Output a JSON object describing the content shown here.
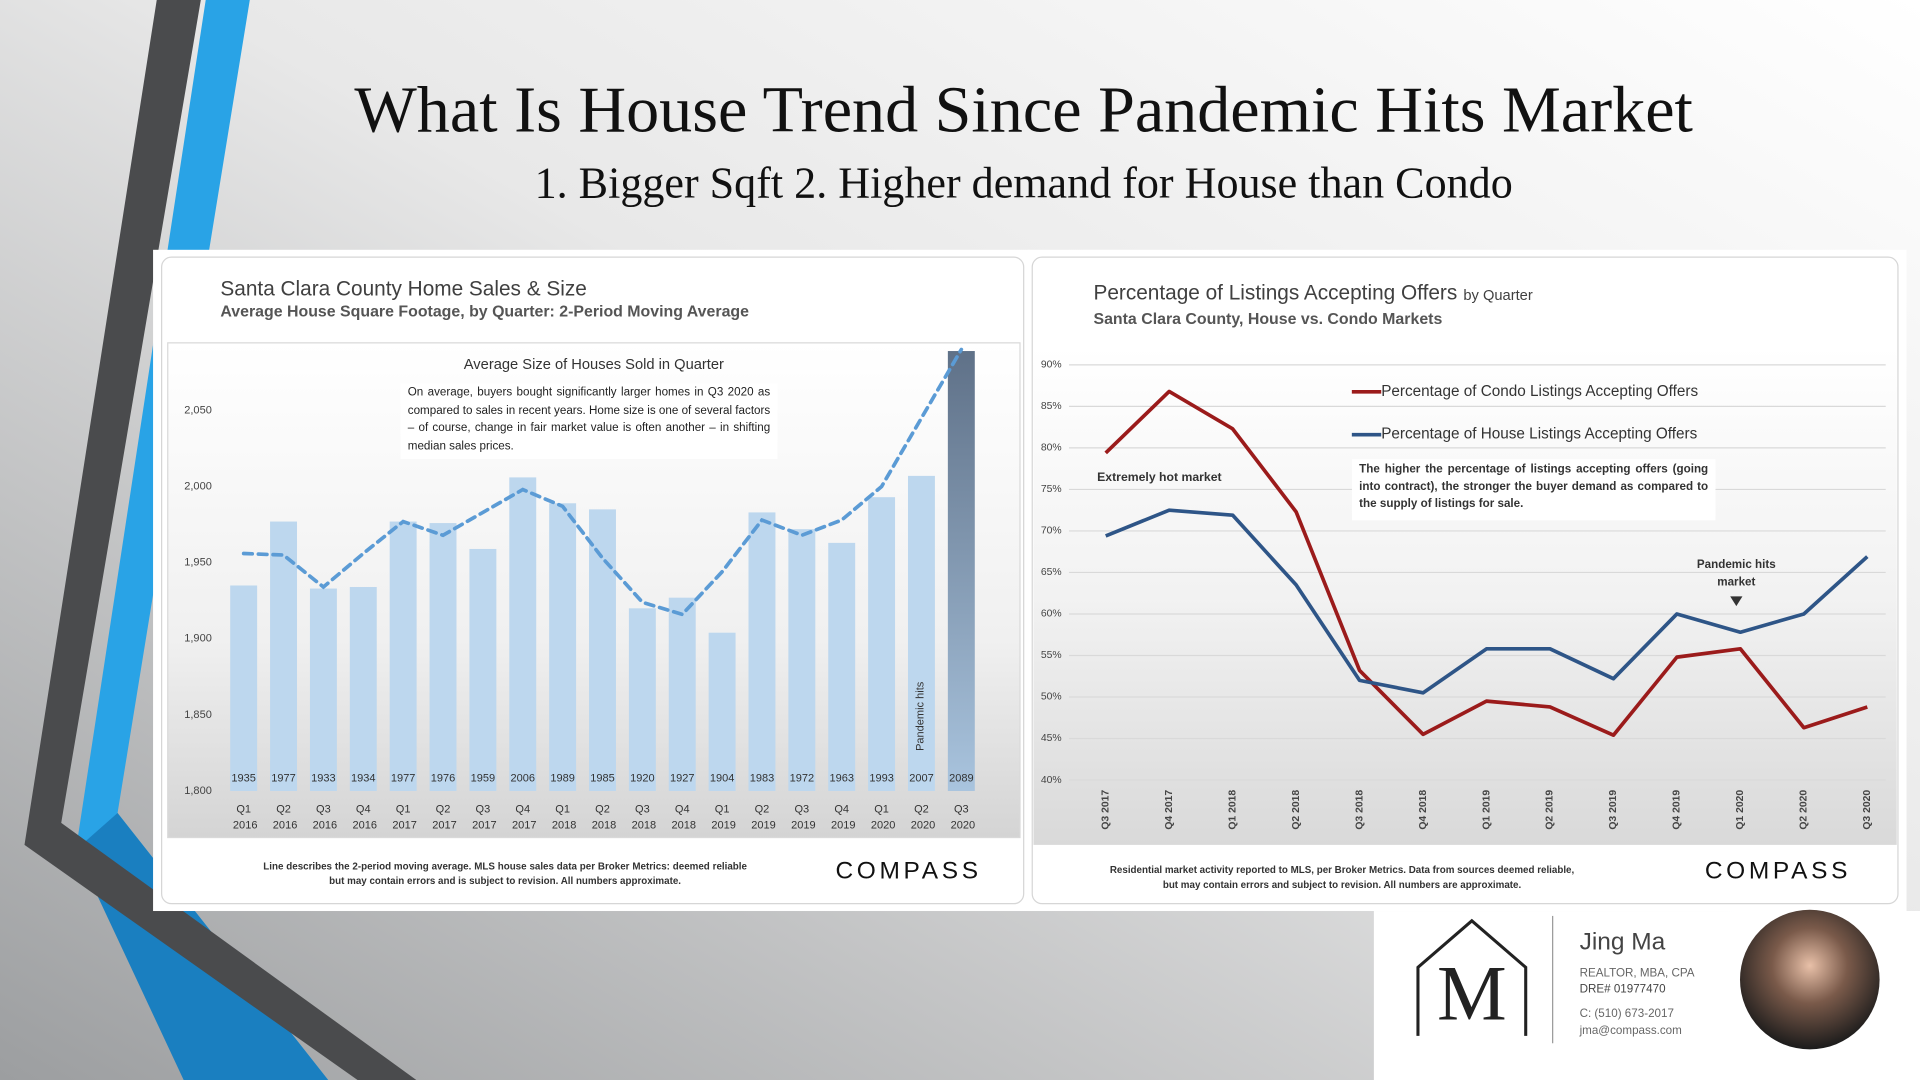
{
  "slide": {
    "title": "What Is House Trend Since Pandemic Hits Market",
    "subtitle": "1. Bigger Sqft 2. Higher demand for House than Condo"
  },
  "chart_data": [
    {
      "type": "bar",
      "title": "Santa Clara County Home Sales & Size",
      "subtitle": "Average House Square Footage, by Quarter: 2-Period Moving Average",
      "plot_title": "Average Size of Houses Sold in Quarter",
      "annotation": "On average, buyers bought significantly larger homes in Q3 2020 as compared to sales in recent years. Home size is one of several factors – of course, change in fair market value is often another – in shifting median sales prices.",
      "event_label": "Pandemic hits",
      "footnote": "Line describes the 2-period moving average. MLS house sales data per Broker Metrics: deemed reliable but may contain errors and is subject to revision. All numbers approximate.",
      "brand": "COMPASS",
      "categories": [
        "Q1 2016",
        "Q2 2016",
        "Q3 2016",
        "Q4 2016",
        "Q1 2017",
        "Q2 2017",
        "Q3 2017",
        "Q4 2017",
        "Q1 2018",
        "Q2 2018",
        "Q3 2018",
        "Q4 2018",
        "Q1 2019",
        "Q2 2019",
        "Q3 2019",
        "Q4 2019",
        "Q1 2020",
        "Q2 2020",
        "Q3 2020"
      ],
      "series": [
        {
          "kind": "bar",
          "colors": [
            "#bdd7ee",
            "#bdd7ee",
            "#bdd7ee",
            "#bdd7ee",
            "#bdd7ee",
            "#bdd7ee",
            "#bdd7ee",
            "#bdd7ee",
            "#bdd7ee",
            "#bdd7ee",
            "#bdd7ee",
            "#bdd7ee",
            "#bdd7ee",
            "#bdd7ee",
            "#bdd7ee",
            "#bdd7ee",
            "#bdd7ee",
            "#bdd7ee",
            "#5f7188"
          ],
          "values": [
            1935,
            1977,
            1933,
            1934,
            1977,
            1976,
            1959,
            2006,
            1989,
            1985,
            1920,
            1927,
            1904,
            1983,
            1972,
            1963,
            1993,
            2007,
            2089
          ]
        },
        {
          "kind": "line",
          "color": "#5b9bd5",
          "dashed": true,
          "values": [
            1956,
            1955,
            1934,
            1956,
            1977,
            1968,
            1983,
            1998,
            1987,
            1953,
            1924,
            1916,
            1944,
            1978,
            1968,
            1978,
            2000,
            2045,
            2090
          ]
        }
      ],
      "ylim": [
        1800,
        2100
      ],
      "yticks": [
        {
          "value": 1800,
          "label": "1,800"
        },
        {
          "value": 1850,
          "label": "1,850"
        },
        {
          "value": 1900,
          "label": "1,900"
        },
        {
          "value": 1950,
          "label": "1,950"
        },
        {
          "value": 2000,
          "label": "2,000"
        },
        {
          "value": 2050,
          "label": "2,050"
        }
      ],
      "grid": false
    },
    {
      "type": "line",
      "title": "Percentage of Listings Accepting Offers",
      "title_suffix": "by Quarter",
      "subtitle": "Santa Clara County, House vs. Condo Markets",
      "annotations": [
        "Extremely hot market",
        "The higher the percentage of listings accepting offers (going into contract), the stronger the buyer demand as compared to the supply of listings for sale.",
        "Pandemic hits market"
      ],
      "footnote": "Residential market activity reported to MLS, per Broker Metrics. Data from sources deemed reliable, but may contain errors and subject to revision. All numbers are approximate.",
      "brand": "COMPASS",
      "categories": [
        "Q3 2017",
        "Q4 2017",
        "Q1 2018",
        "Q2 2018",
        "Q3 2018",
        "Q4 2018",
        "Q1 2019",
        "Q2 2019",
        "Q3 2019",
        "Q4 2019",
        "Q1 2020",
        "Q2 2020",
        "Q3 2020"
      ],
      "series": [
        {
          "name": "Percentage of Condo Listings Accepting Offers",
          "color": "#9b1b1b",
          "values": [
            79.4,
            86.8,
            82.3,
            72.3,
            53.2,
            45.5,
            49.5,
            48.8,
            45.4,
            54.8,
            55.8,
            46.3,
            48.8
          ]
        },
        {
          "name": "Percentage of House Listings Accepting Offers",
          "color": "#2e5587",
          "values": [
            69.4,
            72.5,
            71.9,
            63.5,
            52.0,
            50.5,
            55.8,
            55.8,
            52.2,
            60.0,
            57.8,
            60.0,
            66.9
          ]
        }
      ],
      "ylim": [
        40,
        90
      ],
      "yticks": [
        {
          "value": 40,
          "label": "40%"
        },
        {
          "value": 45,
          "label": "45%"
        },
        {
          "value": 50,
          "label": "50%"
        },
        {
          "value": 55,
          "label": "55%"
        },
        {
          "value": 60,
          "label": "60%"
        },
        {
          "value": 65,
          "label": "65%"
        },
        {
          "value": 70,
          "label": "70%"
        },
        {
          "value": 75,
          "label": "75%"
        },
        {
          "value": 80,
          "label": "80%"
        },
        {
          "value": 85,
          "label": "85%"
        },
        {
          "value": 90,
          "label": "90%"
        }
      ],
      "grid": true
    }
  ],
  "agent": {
    "logo": "M",
    "name": "Jing Ma",
    "credentials": "REALTOR, MBA, CPA",
    "license": "DRE# 01977470",
    "phone": "C: (510) 673-2017",
    "email": "jma@compass.com"
  }
}
